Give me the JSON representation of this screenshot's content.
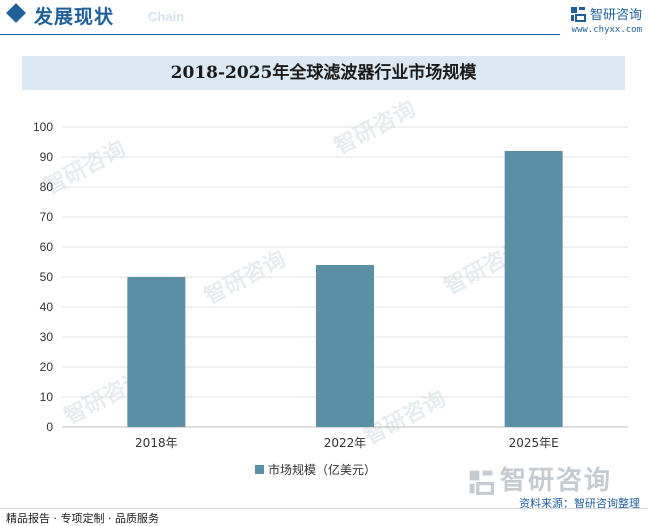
{
  "header": {
    "section_title": "发展现状",
    "section_sub": "Chain",
    "brand_name": "智研咨询",
    "brand_url": "www.chyxx.com"
  },
  "watermark_text": "智研咨询",
  "legend": {
    "label": "市场规模（亿美元）"
  },
  "footer": {
    "left": "精品报告 · 专项定制 · 品质服务",
    "source": "资料来源：智研咨询整理",
    "big_brand": "智研咨询"
  },
  "colors": {
    "bar": "#5b8fa5",
    "accent": "#1f5f9c",
    "title_band": "#dbe9f4"
  },
  "chart_data": {
    "type": "bar",
    "title": "2018-2025年全球滤波器行业市场规模",
    "categories": [
      "2018年",
      "2022年",
      "2025年E"
    ],
    "series": [
      {
        "name": "市场规模（亿美元）",
        "values": [
          50,
          54,
          92
        ]
      }
    ],
    "ylim": [
      0,
      100
    ],
    "yticks": [
      0,
      10,
      20,
      30,
      40,
      50,
      60,
      70,
      80,
      90,
      100
    ],
    "grid": true,
    "legend_position": "bottom"
  }
}
